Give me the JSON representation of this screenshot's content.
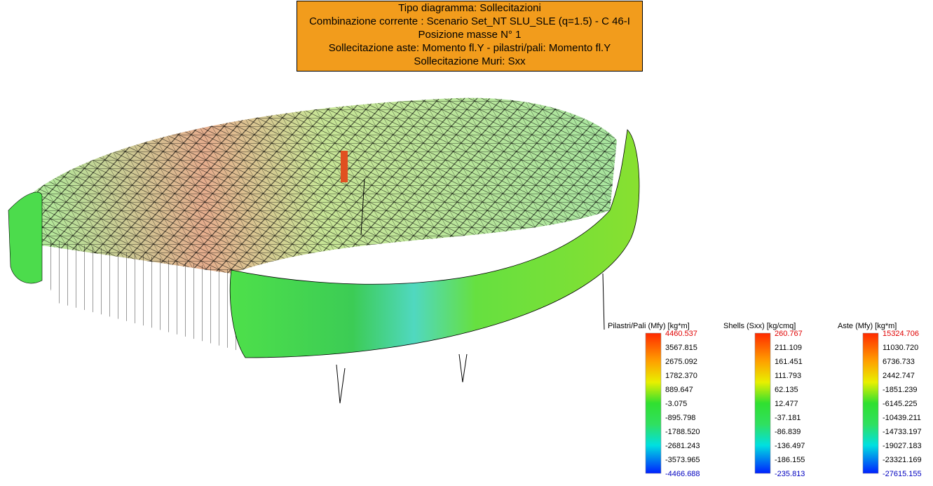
{
  "header": {
    "lines": [
      "Tipo diagramma: Sollecitazioni",
      "Combinazione corrente : Scenario Set_NT SLU_SLE (q=1.5)  - C 46-I",
      "Posizione masse N° 1",
      "Sollecitazione aste: Momento fl.Y - pilastri/pali: Momento fl.Y",
      "Sollecitazione Muri: Sxx"
    ]
  },
  "legends": [
    {
      "title": "Pilastri/Pali (Mfy) [kg*m]",
      "labels": [
        "4460.537",
        "3567.815",
        "2675.092",
        "1782.370",
        "889.647",
        "-3.075",
        "-895.798",
        "-1788.520",
        "-2681.243",
        "-3573.965",
        "-4466.688"
      ]
    },
    {
      "title": "Shells (Sxx) [kg/cmq]",
      "labels": [
        "260.767",
        "211.109",
        "161.451",
        "111.793",
        "62.135",
        "12.477",
        "-37.181",
        "-86.839",
        "-136.497",
        "-186.155",
        "-235.813"
      ]
    },
    {
      "title": "Aste (Mfy) [kg*m]",
      "labels": [
        "15324.706",
        "11030.720",
        "6736.733",
        "2442.747",
        "-1851.239",
        "-6145.225",
        "-10439.211",
        "-14733.197",
        "-19027.183",
        "-23321.169",
        "-27615.155"
      ]
    }
  ]
}
